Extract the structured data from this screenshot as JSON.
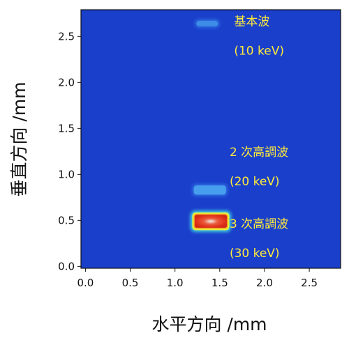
{
  "chart_data": {
    "type": "heatmap",
    "xlabel": "水平方向 /mm",
    "ylabel": "垂直方向 /mm",
    "xlim": [
      -0.05,
      2.85
    ],
    "ylim": [
      -0.02,
      2.79
    ],
    "x_ticks": [
      0.0,
      0.5,
      1.0,
      1.5,
      2.0,
      2.5
    ],
    "y_ticks": [
      0.0,
      0.5,
      1.0,
      1.5,
      2.0,
      2.5
    ],
    "x_tick_labels": [
      "0.0",
      "0.5",
      "1.0",
      "1.5",
      "2.0",
      "2.5"
    ],
    "y_tick_labels": [
      "0.0",
      "0.5",
      "1.0",
      "1.5",
      "2.0",
      "2.5"
    ],
    "background_color": "#1a3fcb",
    "spots": [
      {
        "x_range": [
          1.24,
          1.48
        ],
        "y_range": [
          2.61,
          2.67
        ],
        "intensity": 0.32,
        "color": "#3f8fe8"
      },
      {
        "x_range": [
          1.21,
          1.57
        ],
        "y_range": [
          0.78,
          0.88
        ],
        "intensity": 0.4,
        "color": "#4aa3f0"
      },
      {
        "x_range": [
          1.22,
          1.58
        ],
        "y_range": [
          0.42,
          0.56
        ],
        "intensity": 1.0,
        "color": "#e8432a"
      }
    ],
    "annotations": [
      {
        "lines": [
          "基本波",
          "(10 keV)"
        ],
        "x": 1.66,
        "y": 2.62
      },
      {
        "lines": [
          "2 次高調波",
          "(20 keV)"
        ],
        "x": 1.61,
        "y": 1.2
      },
      {
        "lines": [
          "3 次高調波",
          "(30 keV)"
        ],
        "x": 1.61,
        "y": 0.42
      }
    ]
  }
}
